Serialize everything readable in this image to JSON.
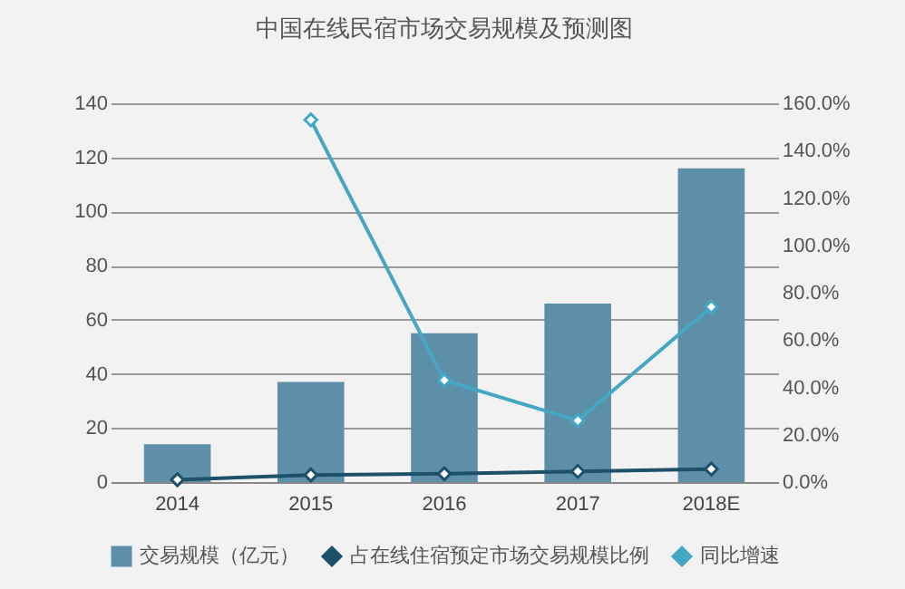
{
  "chart_data": {
    "type": "bar",
    "title": "中国在线民宿市场交易规模及预测图",
    "categories": [
      "2014",
      "2015",
      "2016",
      "2017",
      "2018E"
    ],
    "series": [
      {
        "name": "交易规模（亿元）",
        "type": "bar",
        "color": "#5d8fa9",
        "values": [
          14,
          37,
          55,
          66,
          116
        ]
      },
      {
        "name": "占在线住宿预定市场交易规模比例",
        "type": "line",
        "axis": "y2",
        "color": "#1d5069",
        "values": [
          1,
          3,
          3.5,
          4.5,
          5.5
        ]
      },
      {
        "name": "同比增速",
        "type": "line",
        "axis": "y2",
        "color": "#45a7c4",
        "values": [
          null,
          153,
          43,
          26,
          74
        ]
      }
    ],
    "ylim": [
      0,
      140
    ],
    "yticks": [
      0,
      20,
      40,
      60,
      80,
      100,
      120,
      140
    ],
    "y2lim": [
      0,
      160
    ],
    "y2ticks": [
      {
        "value": 0,
        "label": "0.0%"
      },
      {
        "value": 20,
        "label": "20.0%"
      },
      {
        "value": 40,
        "label": "40.0%"
      },
      {
        "value": 60,
        "label": "60.0%"
      },
      {
        "value": 80,
        "label": "80.0%"
      },
      {
        "value": 100,
        "label": "100.0%"
      },
      {
        "value": 120,
        "label": "120.0%"
      },
      {
        "value": 140,
        "label": "140.0%"
      },
      {
        "value": 160,
        "label": "160.0%"
      }
    ],
    "grid": "y",
    "legend": "bottom",
    "marker": "diamond"
  }
}
